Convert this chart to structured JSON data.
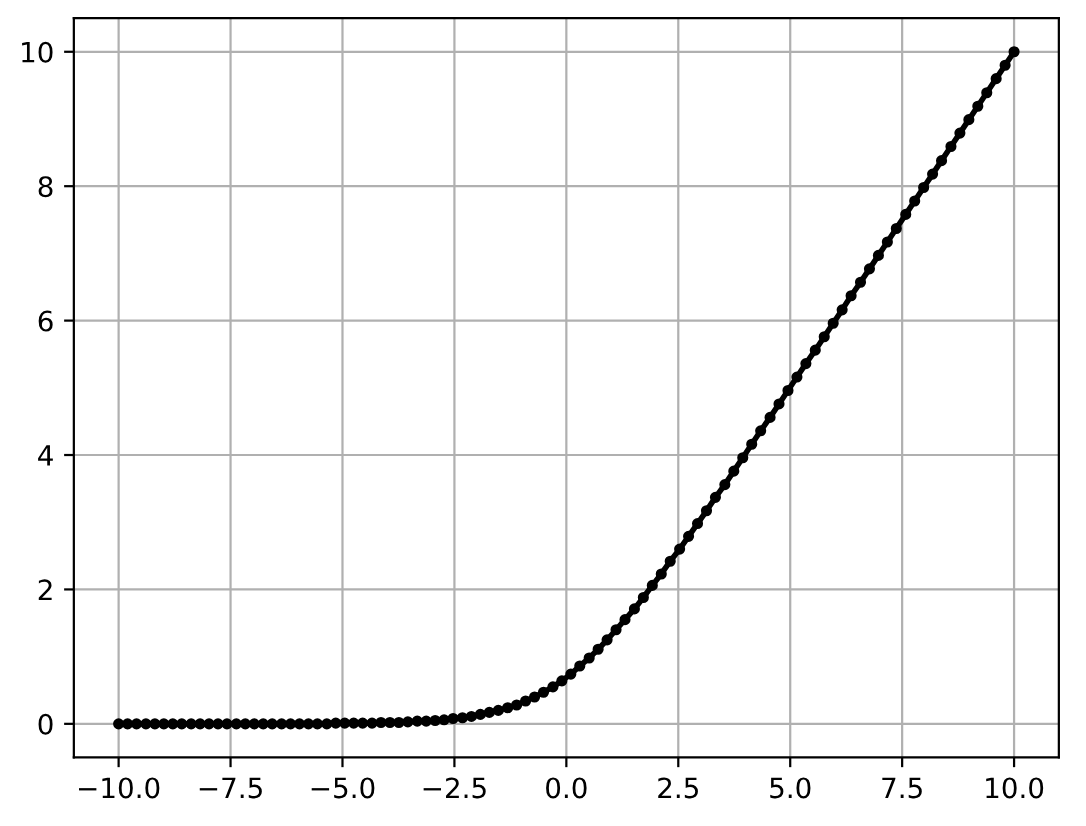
{
  "chart_data": {
    "type": "line",
    "x": [
      -10,
      -9.8,
      -9.6,
      -9.39,
      -9.19,
      -8.99,
      -8.79,
      -8.59,
      -8.38,
      -8.18,
      -7.98,
      -7.78,
      -7.58,
      -7.37,
      -7.17,
      -6.97,
      -6.77,
      -6.57,
      -6.36,
      -6.16,
      -5.96,
      -5.76,
      -5.56,
      -5.35,
      -5.15,
      -4.95,
      -4.75,
      -4.55,
      -4.34,
      -4.14,
      -3.94,
      -3.74,
      -3.54,
      -3.33,
      -3.13,
      -2.93,
      -2.73,
      -2.53,
      -2.32,
      -2.12,
      -1.92,
      -1.72,
      -1.52,
      -1.31,
      -1.11,
      -0.91,
      -0.71,
      -0.51,
      -0.3,
      -0.1,
      0.1,
      0.3,
      0.51,
      0.71,
      0.91,
      1.11,
      1.31,
      1.52,
      1.72,
      1.92,
      2.12,
      2.32,
      2.53,
      2.73,
      2.93,
      3.13,
      3.33,
      3.54,
      3.74,
      3.94,
      4.14,
      4.34,
      4.55,
      4.75,
      4.95,
      5.15,
      5.35,
      5.56,
      5.76,
      5.96,
      6.16,
      6.36,
      6.57,
      6.77,
      6.97,
      7.17,
      7.37,
      7.58,
      7.78,
      7.98,
      8.18,
      8.38,
      8.59,
      8.79,
      8.99,
      9.19,
      9.39,
      9.6,
      9.8,
      10
    ],
    "series": [
      {
        "color": "#000000",
        "values": [
          0,
          0,
          0,
          0,
          0,
          0,
          0,
          0,
          0,
          0,
          0,
          0,
          0,
          0,
          0,
          0,
          0,
          0,
          0,
          0,
          0,
          0,
          0,
          0,
          0.01,
          0.01,
          0.01,
          0.01,
          0.01,
          0.02,
          0.02,
          0.02,
          0.03,
          0.04,
          0.04,
          0.05,
          0.06,
          0.08,
          0.09,
          0.11,
          0.14,
          0.17,
          0.2,
          0.24,
          0.28,
          0.34,
          0.4,
          0.47,
          0.55,
          0.64,
          0.74,
          0.86,
          0.98,
          1.11,
          1.25,
          1.4,
          1.55,
          1.71,
          1.88,
          2.06,
          2.23,
          2.42,
          2.6,
          2.79,
          2.98,
          3.17,
          3.37,
          3.56,
          3.76,
          3.96,
          4.16,
          4.36,
          4.56,
          4.76,
          4.96,
          5.16,
          5.36,
          5.56,
          5.76,
          5.96,
          6.16,
          6.37,
          6.57,
          6.77,
          6.97,
          7.17,
          7.37,
          7.58,
          7.78,
          7.98,
          8.18,
          8.38,
          8.59,
          8.79,
          8.99,
          9.19,
          9.39,
          9.6,
          9.8,
          10
        ]
      }
    ],
    "xlim": [
      -11,
      11
    ],
    "ylim": [
      -0.5,
      10.5
    ],
    "xticks": [
      {
        "value": -10,
        "label": "−10.0"
      },
      {
        "value": -7.5,
        "label": "−7.5"
      },
      {
        "value": -5,
        "label": "−5.0"
      },
      {
        "value": -2.5,
        "label": "−2.5"
      },
      {
        "value": 0,
        "label": "0.0"
      },
      {
        "value": 2.5,
        "label": "2.5"
      },
      {
        "value": 5,
        "label": "5.0"
      },
      {
        "value": 7.5,
        "label": "7.5"
      },
      {
        "value": 10,
        "label": "10.0"
      }
    ],
    "yticks": [
      0,
      2,
      4,
      6,
      8,
      10
    ],
    "grid": true,
    "marker": "circle",
    "line_style": "solid"
  }
}
